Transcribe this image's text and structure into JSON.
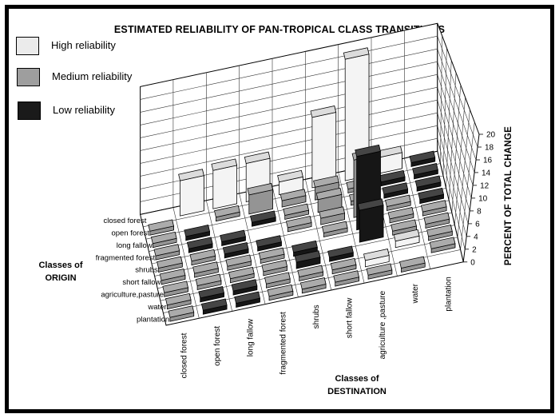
{
  "title": "ESTIMATED RELIABILITY OF PAN-TROPICAL CLASS TRANSITIONS",
  "legend": {
    "items": [
      {
        "label": "High reliability",
        "key": "high",
        "color": "#ebebeb"
      },
      {
        "label": "Medium reliability",
        "key": "medium",
        "color": "#9e9e9e"
      },
      {
        "label": "Low reliability",
        "key": "low",
        "color": "#1a1a1a"
      }
    ]
  },
  "axes": {
    "origin_title_line1": "Classes of",
    "origin_title_line2": "ORIGIN",
    "destination_title_line1": "Classes of",
    "destination_title_line2": "DESTINATION",
    "z_title": "PERCENT OF TOTAL CHANGE"
  },
  "chart_data": {
    "type": "bar3d",
    "title": "ESTIMATED RELIABILITY OF PAN-TROPICAL CLASS TRANSITIONS",
    "zlabel": "PERCENT OF TOTAL CHANGE",
    "zlim": [
      0,
      20
    ],
    "ztick_step": 2,
    "z_ticks": [
      0,
      2,
      4,
      6,
      8,
      10,
      12,
      14,
      16,
      18,
      20
    ],
    "grid": true,
    "legend_position": "top-left",
    "origin_classes": [
      "closed forest",
      "open forest",
      "long fallow",
      "fragmented forest",
      "shrubs",
      "short fallow",
      "agriculture,pasture",
      "water",
      "plantation"
    ],
    "destination_classes": [
      "closed forest",
      "open forest",
      "long fallow",
      "fragmented forest",
      "shrubs",
      "short fallow",
      "agriculture ,pasture",
      "water",
      "plantation"
    ],
    "reliability_colors": {
      "high": "#ebebeb",
      "medium": "#9e9e9e",
      "low": "#1a1a1a"
    },
    "cells_format": "[origin_index, destination_index, value_percent, reliability H|M|L]",
    "cells": [
      [
        0,
        1,
        5.5,
        "H"
      ],
      [
        0,
        2,
        6,
        "H"
      ],
      [
        0,
        3,
        6,
        "H"
      ],
      [
        0,
        4,
        2,
        "H"
      ],
      [
        0,
        5,
        11,
        "H"
      ],
      [
        0,
        6,
        19,
        "H"
      ],
      [
        0,
        7,
        2.5,
        "H"
      ],
      [
        0,
        8,
        0,
        "L"
      ],
      [
        1,
        0,
        0,
        "M"
      ],
      [
        1,
        2,
        0,
        "M"
      ],
      [
        1,
        3,
        3,
        "M"
      ],
      [
        1,
        4,
        1,
        "M"
      ],
      [
        1,
        5,
        2,
        "M"
      ],
      [
        1,
        6,
        0,
        "M"
      ],
      [
        1,
        7,
        0,
        "L"
      ],
      [
        1,
        8,
        0,
        "L"
      ],
      [
        2,
        0,
        0,
        "M"
      ],
      [
        2,
        1,
        0,
        "L"
      ],
      [
        2,
        3,
        0,
        "L"
      ],
      [
        2,
        4,
        0,
        "M"
      ],
      [
        2,
        5,
        2,
        "M"
      ],
      [
        2,
        6,
        0,
        "M"
      ],
      [
        2,
        7,
        0,
        "L"
      ],
      [
        2,
        8,
        0,
        "L"
      ],
      [
        3,
        0,
        0,
        "M"
      ],
      [
        3,
        1,
        0,
        "L"
      ],
      [
        3,
        2,
        0,
        "L"
      ],
      [
        3,
        4,
        0,
        "M"
      ],
      [
        3,
        5,
        1,
        "M"
      ],
      [
        3,
        6,
        9,
        "M"
      ],
      [
        3,
        7,
        0,
        "M"
      ],
      [
        3,
        8,
        0,
        "L"
      ],
      [
        4,
        0,
        0,
        "M"
      ],
      [
        4,
        1,
        0,
        "M"
      ],
      [
        4,
        2,
        0,
        "L"
      ],
      [
        4,
        3,
        0,
        "L"
      ],
      [
        4,
        5,
        0,
        "M"
      ],
      [
        4,
        6,
        11.5,
        "L"
      ],
      [
        4,
        7,
        0,
        "M"
      ],
      [
        4,
        8,
        0,
        "M"
      ],
      [
        5,
        0,
        0,
        "M"
      ],
      [
        5,
        1,
        0,
        "M"
      ],
      [
        5,
        2,
        0,
        "M"
      ],
      [
        5,
        3,
        0,
        "M"
      ],
      [
        5,
        4,
        0,
        "L"
      ],
      [
        5,
        6,
        5,
        "L"
      ],
      [
        5,
        7,
        0,
        "M"
      ],
      [
        5,
        8,
        0,
        "M"
      ],
      [
        6,
        0,
        0,
        "M"
      ],
      [
        6,
        1,
        0,
        "M"
      ],
      [
        6,
        2,
        0,
        "M"
      ],
      [
        6,
        3,
        0,
        "M"
      ],
      [
        6,
        4,
        1,
        "L"
      ],
      [
        6,
        5,
        0,
        "L"
      ],
      [
        6,
        7,
        1,
        "H"
      ],
      [
        6,
        8,
        0,
        "M"
      ],
      [
        7,
        0,
        0,
        "M"
      ],
      [
        7,
        1,
        0,
        "L"
      ],
      [
        7,
        2,
        0,
        "L"
      ],
      [
        7,
        3,
        0,
        "M"
      ],
      [
        7,
        4,
        0,
        "M"
      ],
      [
        7,
        5,
        0,
        "M"
      ],
      [
        7,
        6,
        1,
        "H"
      ],
      [
        7,
        8,
        0,
        "M"
      ],
      [
        8,
        0,
        0,
        "M"
      ],
      [
        8,
        1,
        0,
        "L"
      ],
      [
        8,
        2,
        0,
        "L"
      ],
      [
        8,
        3,
        0,
        "M"
      ],
      [
        8,
        4,
        0,
        "M"
      ],
      [
        8,
        5,
        0,
        "M"
      ],
      [
        8,
        6,
        0,
        "M"
      ],
      [
        8,
        7,
        0,
        "M"
      ]
    ]
  }
}
